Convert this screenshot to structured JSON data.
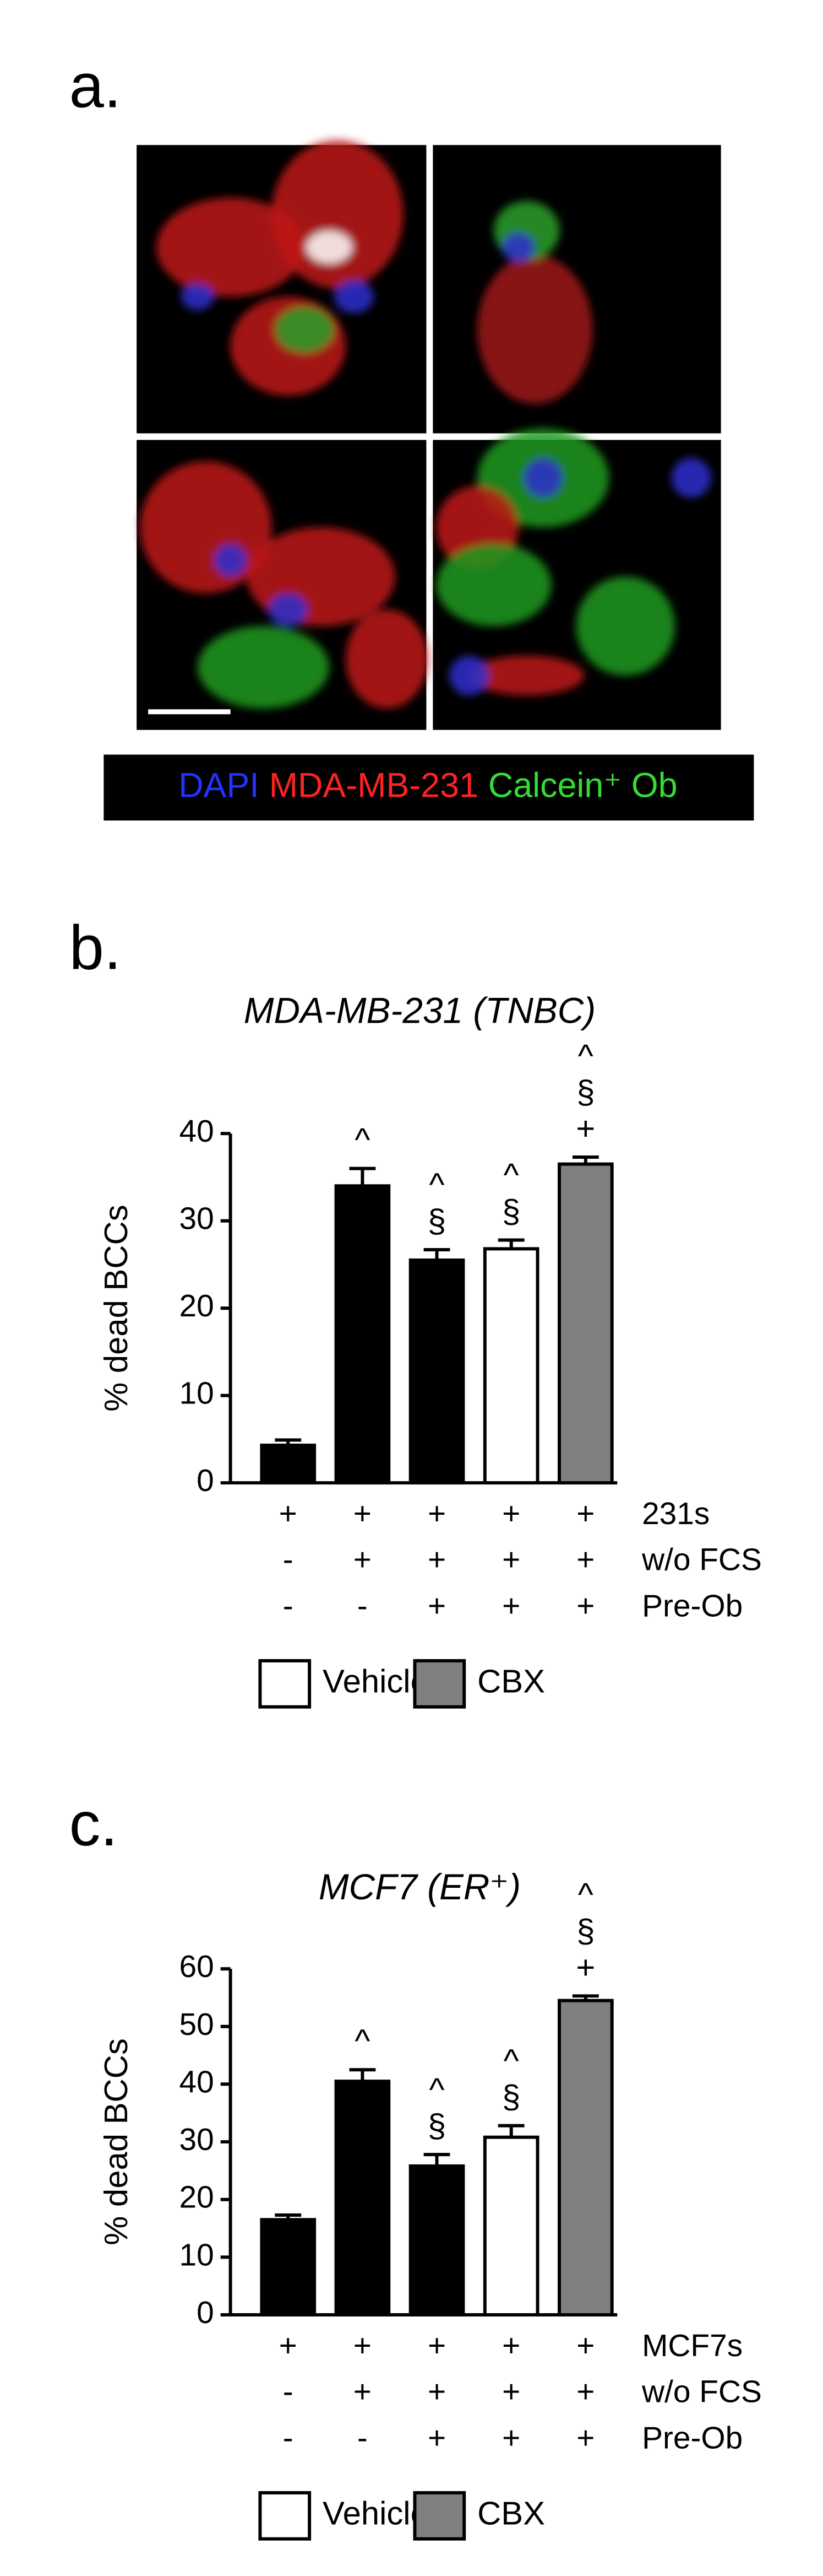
{
  "figure": {
    "panel_labels": [
      "a.",
      "b.",
      "c."
    ],
    "microscopy_legend": [
      {
        "text": "DAPI",
        "color": "#2233ff"
      },
      {
        "text": "MDA-MB-231",
        "color": "#ff2222"
      },
      {
        "text": "Calcein⁺ Ob",
        "color": "#33dd33"
      }
    ]
  },
  "chart_data": [
    {
      "type": "bar",
      "title": "MDA-MB-231 (TNBC)",
      "y_label": "% dead BCCs",
      "values": [
        4.3,
        34,
        25.5,
        26.8,
        36.5
      ],
      "errors": [
        0.6,
        2,
        1.2,
        1,
        0.8
      ],
      "colors": [
        "#000000",
        "#000000",
        "#000000",
        "#ffffff",
        "#808080"
      ],
      "annotations": [
        [],
        [
          "^"
        ],
        [
          "^",
          "§"
        ],
        [
          "^",
          "§"
        ],
        [
          "^",
          "§",
          "+"
        ]
      ],
      "conditions": [
        {
          "label": "231s",
          "marks": [
            "+",
            "+",
            "+",
            "+",
            "+"
          ]
        },
        {
          "label": "w/o FCS",
          "marks": [
            "-",
            "+",
            "+",
            "+",
            "+"
          ]
        },
        {
          "label": "Pre-Ob",
          "marks": [
            "-",
            "-",
            "+",
            "+",
            "+"
          ]
        }
      ],
      "legend": [
        {
          "name": "Vehicle",
          "color": "#ffffff"
        },
        {
          "name": "CBX",
          "color": "#808080"
        }
      ],
      "ylim": [
        0,
        40
      ],
      "yticks": [
        0,
        10,
        20,
        30,
        40
      ]
    },
    {
      "type": "bar",
      "title": "MCF7 (ER⁺)",
      "y_label": "% dead BCCs",
      "values": [
        16.5,
        40.5,
        25.8,
        30.8,
        54.5
      ],
      "errors": [
        0.8,
        2,
        2,
        2,
        0.8
      ],
      "colors": [
        "#000000",
        "#000000",
        "#000000",
        "#ffffff",
        "#808080"
      ],
      "annotations": [
        [],
        [
          "^"
        ],
        [
          "^",
          "§"
        ],
        [
          "^",
          "§"
        ],
        [
          "^",
          "§",
          "+"
        ]
      ],
      "conditions": [
        {
          "label": "MCF7s",
          "marks": [
            "+",
            "+",
            "+",
            "+",
            "+"
          ]
        },
        {
          "label": "w/o FCS",
          "marks": [
            "-",
            "+",
            "+",
            "+",
            "+"
          ]
        },
        {
          "label": "Pre-Ob",
          "marks": [
            "-",
            "-",
            "+",
            "+",
            "+"
          ]
        }
      ],
      "legend": [
        {
          "name": "Vehicle",
          "color": "#ffffff"
        },
        {
          "name": "CBX",
          "color": "#808080"
        }
      ],
      "ylim": [
        0,
        60
      ],
      "yticks": [
        0,
        10,
        20,
        30,
        40,
        50,
        60
      ]
    }
  ]
}
